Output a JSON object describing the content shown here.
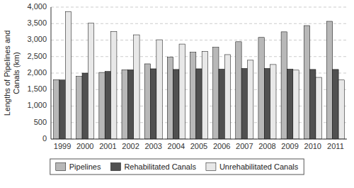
{
  "chart_data": {
    "type": "bar",
    "ylabel": "Lengths of Pipelines and\nCanals (km)",
    "categories": [
      "1999",
      "2000",
      "2001",
      "2002",
      "2003",
      "2004",
      "2005",
      "2006",
      "2007",
      "2008",
      "2009",
      "2010",
      "2011"
    ],
    "series": [
      {
        "name": "Pipelines",
        "color": "#b8b8b8",
        "values": [
          1800,
          1900,
          2020,
          2100,
          2280,
          2480,
          2630,
          2780,
          2950,
          3080,
          3250,
          3440,
          3570
        ]
      },
      {
        "name": "Rehabilitated Canals",
        "color": "#505050",
        "values": [
          1790,
          2000,
          2050,
          2100,
          2130,
          2110,
          2130,
          2120,
          2140,
          2140,
          2120,
          2110,
          2110
        ]
      },
      {
        "name": "Unrehabilitated Canals",
        "color": "#e8e8e8",
        "values": [
          3860,
          3510,
          3260,
          3160,
          3010,
          2880,
          2660,
          2560,
          2390,
          2260,
          2090,
          1870,
          1790
        ]
      }
    ],
    "ylim": [
      0,
      4000
    ],
    "yticks": [
      0,
      500,
      {
        "value": 1000,
        "label": "1,000"
      },
      {
        "value": 1500,
        "label": "1,500"
      },
      {
        "value": 2000,
        "label": "2,000"
      },
      {
        "value": 2500,
        "label": "2,500"
      },
      {
        "value": 3000,
        "label": "3,000"
      },
      {
        "value": 3500,
        "label": "3,500"
      },
      {
        "value": 4000,
        "label": "4,000"
      }
    ],
    "grid": true,
    "legend": "bottom"
  }
}
